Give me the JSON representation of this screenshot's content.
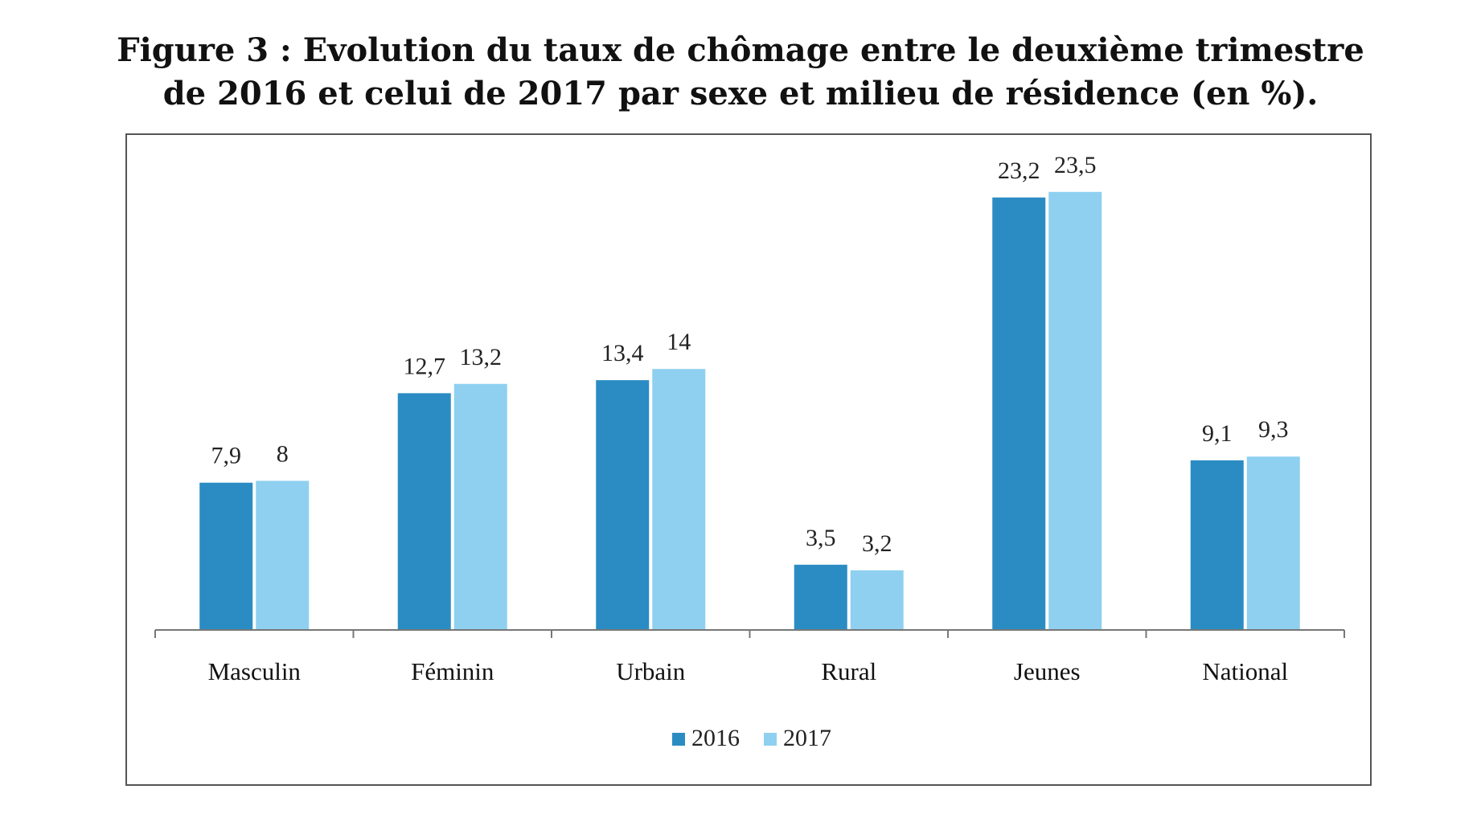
{
  "chart_data": {
    "type": "bar",
    "title_lines": [
      "Figure 3 : Evolution du taux de chômage entre le deuxième trimestre",
      "de 2016 et celui de 2017 par sexe et milieu de résidence (en %)."
    ],
    "categories": [
      "Masculin",
      "Féminin",
      "Urbain",
      "Rural",
      "Jeunes",
      "National"
    ],
    "series": [
      {
        "name": "2016",
        "values": [
          7.9,
          12.7,
          13.4,
          3.5,
          23.2,
          9.1
        ],
        "labels": [
          "7,9",
          "12,7",
          "13,4",
          "3,5",
          "23,2",
          "9,1"
        ],
        "color": "#2b8cc4"
      },
      {
        "name": "2017",
        "values": [
          8,
          13.2,
          14,
          3.2,
          23.5,
          9.3
        ],
        "labels": [
          "8",
          "13,2",
          "14",
          "3,2",
          "23,5",
          "9,3"
        ],
        "color": "#8fd0f0"
      }
    ],
    "ylim": [
      0,
      25
    ],
    "xlabel": "",
    "ylabel": "",
    "grid": false,
    "legend_position": "bottom-center"
  }
}
